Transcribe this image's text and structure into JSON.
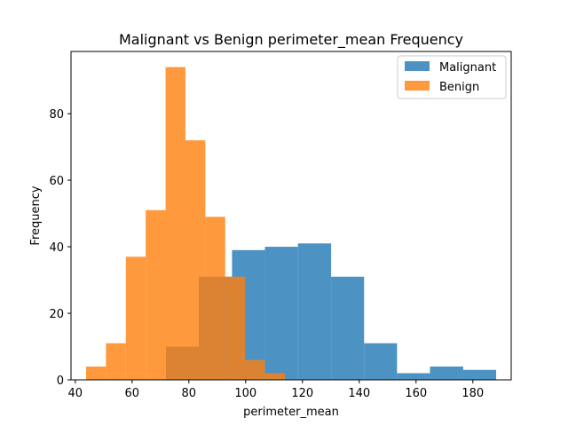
{
  "chart_data": {
    "type": "bar",
    "title": "Malignant vs Benign perimeter_mean Frequency",
    "xlabel": "perimeter_mean",
    "ylabel": "Frequency",
    "xlim": [
      38.5,
      193.5
    ],
    "ylim": [
      0,
      98.7
    ],
    "xticks": [
      40,
      60,
      80,
      100,
      120,
      140,
      160,
      180
    ],
    "yticks": [
      0,
      20,
      40,
      60,
      80
    ],
    "legend_position": "top-right",
    "series": [
      {
        "name": "Malignant",
        "color": "#1f77b4",
        "opacity": 0.8,
        "bin_edges": [
          71.9,
          83.5,
          95.2,
          106.8,
          118.4,
          130.1,
          141.7,
          153.3,
          164.9,
          176.6,
          188.2
        ],
        "values": [
          10,
          31,
          39,
          40,
          41,
          31,
          11,
          2,
          4,
          3
        ]
      },
      {
        "name": "Benign",
        "color": "#ff7f0e",
        "opacity": 0.8,
        "bin_edges": [
          43.8,
          50.8,
          57.8,
          64.8,
          71.8,
          78.8,
          85.8,
          92.8,
          99.8,
          106.8,
          113.8
        ],
        "values": [
          4,
          11,
          37,
          51,
          94,
          72,
          49,
          31,
          6,
          2
        ]
      }
    ]
  }
}
